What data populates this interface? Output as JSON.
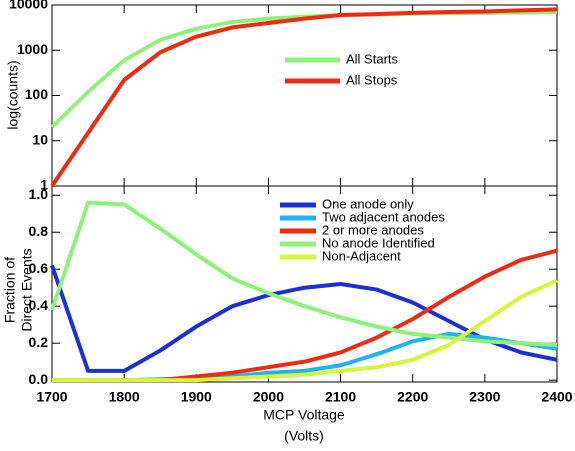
{
  "chart_data": [
    {
      "type": "line",
      "y_label": "log(counts)",
      "log_y": true,
      "legend": "center",
      "x": [
        1700,
        1750,
        1800,
        1850,
        1900,
        1950,
        2000,
        2050,
        2100,
        2150,
        2200,
        2250,
        2300,
        2350,
        2400
      ],
      "xlim": [
        1700,
        2400
      ],
      "xticks": [
        1700,
        1800,
        1900,
        2000,
        2100,
        2200,
        2300,
        2400
      ],
      "ylim": [
        1,
        10000
      ],
      "yticks": [
        1,
        10,
        100,
        1000,
        10000
      ],
      "series": [
        {
          "name": "All Starts",
          "color": "#8ef27a",
          "values": [
            20,
            120,
            600,
            1700,
            3000,
            4200,
            5000,
            5500,
            6000,
            6200,
            6400,
            6600,
            6700,
            6800,
            7000
          ]
        },
        {
          "name": "All Stops",
          "color": "#ee2a10",
          "values": [
            1,
            15,
            220,
            900,
            2000,
            3200,
            4000,
            5000,
            6000,
            6300,
            6700,
            7000,
            7200,
            7600,
            8000
          ]
        }
      ]
    },
    {
      "type": "line",
      "y_label": [
        "Fraction of",
        "Direct Events"
      ],
      "x_label": [
        "MCP Voltage",
        "(Volts)"
      ],
      "legend": "upper right",
      "x": [
        1700,
        1750,
        1800,
        1850,
        1900,
        1950,
        2000,
        2050,
        2100,
        2150,
        2200,
        2250,
        2300,
        2350,
        2400
      ],
      "xlim": [
        1700,
        2400
      ],
      "xticks": [
        1700,
        1800,
        1900,
        2000,
        2100,
        2200,
        2300,
        2400
      ],
      "ylim": [
        -0.01,
        1.05
      ],
      "yticks": [
        {
          "value": 0,
          "label": "0.0"
        },
        0.2,
        0.4,
        0.6,
        0.8,
        {
          "value": 1,
          "label": "1.0"
        }
      ],
      "series": [
        {
          "name": "One anode only",
          "color": "#1c2fd6",
          "values": [
            0.62,
            0.05,
            0.05,
            0.16,
            0.29,
            0.4,
            0.46,
            0.5,
            0.52,
            0.49,
            0.42,
            0.32,
            0.22,
            0.15,
            0.11
          ]
        },
        {
          "name": "Two adjacent anodes",
          "color": "#1fb3f0",
          "values": [
            0,
            0,
            0,
            0.005,
            0.01,
            0.02,
            0.04,
            0.05,
            0.08,
            0.14,
            0.21,
            0.25,
            0.23,
            0.2,
            0.17
          ]
        },
        {
          "name": "2 or more anodes",
          "color": "#ee2a10",
          "values": [
            0,
            0,
            0,
            0,
            0.02,
            0.04,
            0.07,
            0.1,
            0.15,
            0.23,
            0.33,
            0.45,
            0.56,
            0.65,
            0.7
          ]
        },
        {
          "name": "No anode Identified",
          "color": "#8ef27a",
          "values": [
            0.38,
            0.96,
            0.95,
            0.82,
            0.68,
            0.55,
            0.47,
            0.4,
            0.34,
            0.29,
            0.25,
            0.23,
            0.21,
            0.2,
            0.19
          ]
        },
        {
          "name": "Non-Adjacent",
          "color": "#d8f53a",
          "values": [
            0,
            0,
            0,
            0,
            0,
            0.01,
            0.02,
            0.03,
            0.05,
            0.07,
            0.11,
            0.19,
            0.32,
            0.45,
            0.54
          ]
        }
      ]
    }
  ]
}
